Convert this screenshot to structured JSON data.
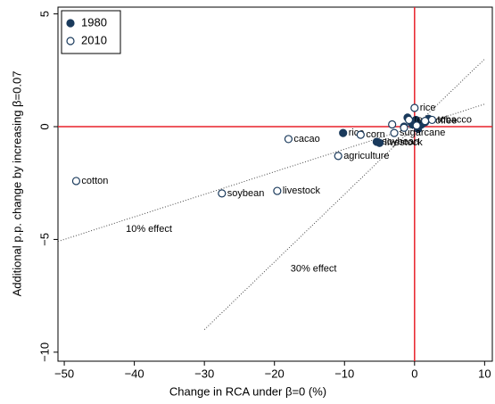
{
  "chart_data": {
    "type": "scatter",
    "x_label": "Change in RCA under β=0 (%)",
    "y_label": "Additional p.p. change by increasing β=0.07",
    "xlim": [
      -50.9,
      11.1
    ],
    "ylim": [
      -10.4,
      5.3
    ],
    "xticks": [
      {
        "value": -50,
        "label": "−50"
      },
      {
        "value": -40,
        "label": "−40"
      },
      {
        "value": -30,
        "label": "−30"
      },
      {
        "value": -20,
        "label": "−20"
      },
      {
        "value": -10,
        "label": "−10"
      },
      0,
      10
    ],
    "yticks": [
      {
        "value": -10,
        "label": "−10"
      },
      {
        "value": -5,
        "label": "−5"
      },
      0,
      5
    ],
    "zero_line_color": "#e8202a",
    "legend_position": "upper-left",
    "series": [
      {
        "name": "1980",
        "color": "#1a3a5c",
        "filled": true,
        "x": [
          -10.2,
          -5.4,
          -5.0,
          -1.0,
          -0.5,
          0.2,
          1.0,
          2.0,
          -1.5,
          0.5,
          1.5,
          -0.3
        ],
        "values": [
          -0.28,
          -0.67,
          -0.72,
          0.4,
          0.2,
          0.3,
          0.1,
          0.35,
          0.0,
          -0.1,
          0.2,
          0.1
        ],
        "labels": [
          "rice",
          "soybean",
          "livestock",
          null,
          null,
          null,
          null,
          null,
          null,
          null,
          null,
          null
        ]
      },
      {
        "name": "2010",
        "color": "#1a3a5c",
        "filled": false,
        "x": [
          -48.3,
          -27.5,
          -19.6,
          -18.0,
          -10.9,
          -7.7,
          -2.9,
          0.0,
          -3.2,
          -0.8,
          1.5,
          2.5,
          0.3,
          -1.5
        ],
        "values": [
          -2.41,
          -2.96,
          -2.85,
          -0.55,
          -1.3,
          -0.36,
          -0.28,
          0.83,
          0.1,
          0.3,
          0.25,
          0.3,
          0.05,
          -0.05
        ],
        "labels": [
          "cotton",
          "soybean",
          "livestock",
          "cacao",
          "agriculture",
          "corn",
          "sugarcane",
          "rice",
          null,
          "tea",
          "coffee",
          "tobacco",
          null,
          null
        ]
      }
    ],
    "reference_lines": [
      {
        "slope": 0.1,
        "x_range": [
          -50.9,
          10
        ],
        "label": "10% effect"
      },
      {
        "slope": 0.3,
        "x_range": [
          -30,
          10
        ],
        "label": "30% effect"
      }
    ]
  }
}
